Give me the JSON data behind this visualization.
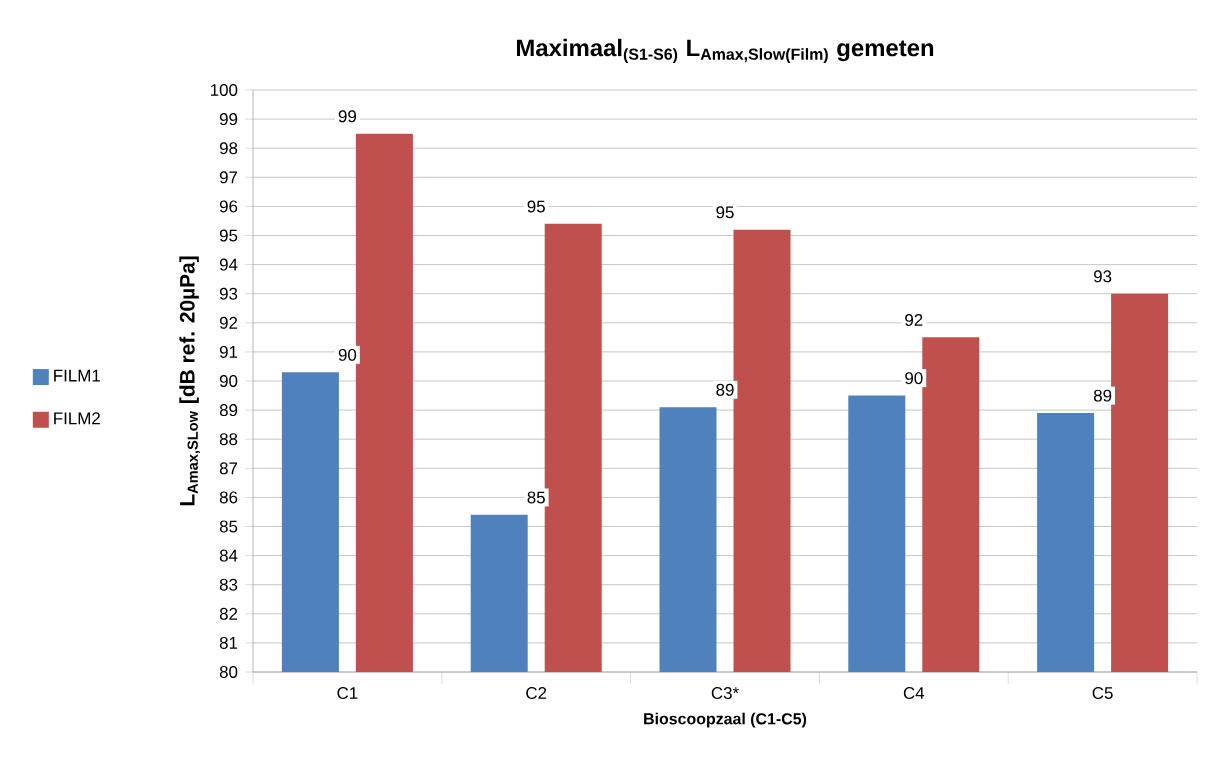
{
  "chart_data": {
    "type": "bar",
    "title": "\\textbf{Maximaal}_{\\textbf{(S1-S6)}}\\ \\textbf{L}_{\\textbf{Amax,Slow(Film)}}\\ \\textbf{gemeten}",
    "xlabel": "Bioscoopzaal  (C1-C5)",
    "ylabel": "L$_{Amax,SLow}$ [dB ref. 20µPa]",
    "categories": [
      "C1",
      "C2",
      "C3*",
      "C4",
      "C5"
    ],
    "series": [
      {
        "name": "FILM1",
        "color": "#4f81bd",
        "values": [
          90.3,
          85.4,
          89.1,
          89.5,
          88.9
        ],
        "value_labels": [
          "90",
          "85",
          "89",
          "90",
          "89"
        ]
      },
      {
        "name": "FILM2",
        "color": "#c0504d",
        "values": [
          98.5,
          95.4,
          95.2,
          91.5,
          93.0
        ],
        "value_labels": [
          "99",
          "95",
          "95",
          "92",
          "93"
        ]
      }
    ],
    "ylim": [
      80,
      100
    ],
    "yticks": [
      80,
      81,
      82,
      83,
      84,
      85,
      86,
      87,
      88,
      89,
      90,
      91,
      92,
      93,
      94,
      95,
      96,
      97,
      98,
      99,
      100
    ],
    "grid": "y",
    "legend": "left"
  }
}
